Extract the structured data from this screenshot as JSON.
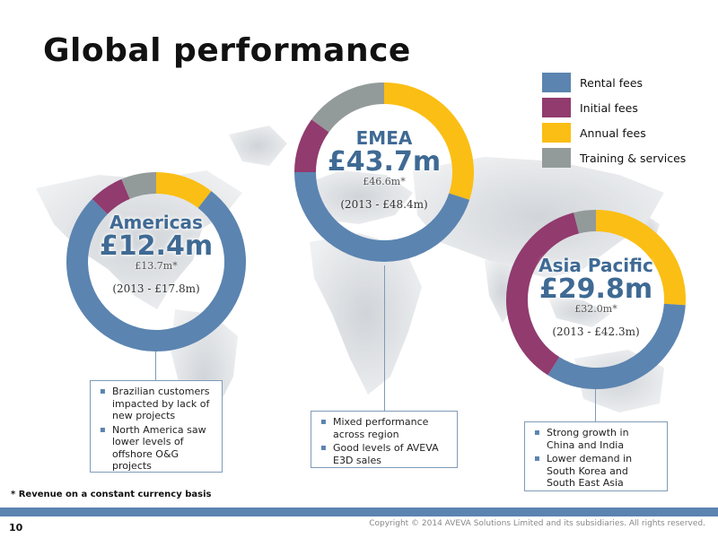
{
  "title": "Global performance",
  "legend": [
    {
      "label": "Rental fees",
      "color": "#5b84b0"
    },
    {
      "label": "Initial fees",
      "color": "#913b6e"
    },
    {
      "label": "Annual fees",
      "color": "#fbbe14"
    },
    {
      "label": "Training & services",
      "color": "#939a9a"
    }
  ],
  "chart_data": [
    {
      "type": "pie",
      "region": "Americas",
      "value": "£12.4m",
      "constant_currency": "£13.7m*",
      "prior_year": "(2013 - £17.8m)",
      "categories": [
        "Rental fees",
        "Initial fees",
        "Annual fees",
        "Training & services"
      ],
      "values": [
        73,
        6,
        10,
        6
      ]
    },
    {
      "type": "pie",
      "region": "EMEA",
      "value": "£43.7m",
      "constant_currency": "£46.6m*",
      "prior_year": "(2013 - £48.4m)",
      "categories": [
        "Rental fees",
        "Initial fees",
        "Annual fees",
        "Training & services"
      ],
      "values": [
        45,
        10,
        30,
        15
      ]
    },
    {
      "type": "pie",
      "region": "Asia Pacific",
      "value": "£29.8m",
      "constant_currency": "£32.0m*",
      "prior_year": "(2013 - £42.3m)",
      "categories": [
        "Rental fees",
        "Initial fees",
        "Annual fees",
        "Training & services"
      ],
      "values": [
        33,
        37,
        26,
        4
      ]
    }
  ],
  "callouts": {
    "americas": [
      "Brazilian customers impacted by lack of new projects",
      "North America saw lower levels of offshore O&G projects"
    ],
    "emea": [
      "Mixed performance across region",
      "Good levels of AVEVA E3D sales"
    ],
    "asia": [
      "Strong growth in China and India",
      "Lower demand in South Korea and South East Asia"
    ]
  },
  "footnote": "* Revenue on a constant currency basis",
  "page_number": "10",
  "copyright": "Copyright © 2014 AVEVA Solutions Limited and its subsidiaries. All rights reserved."
}
